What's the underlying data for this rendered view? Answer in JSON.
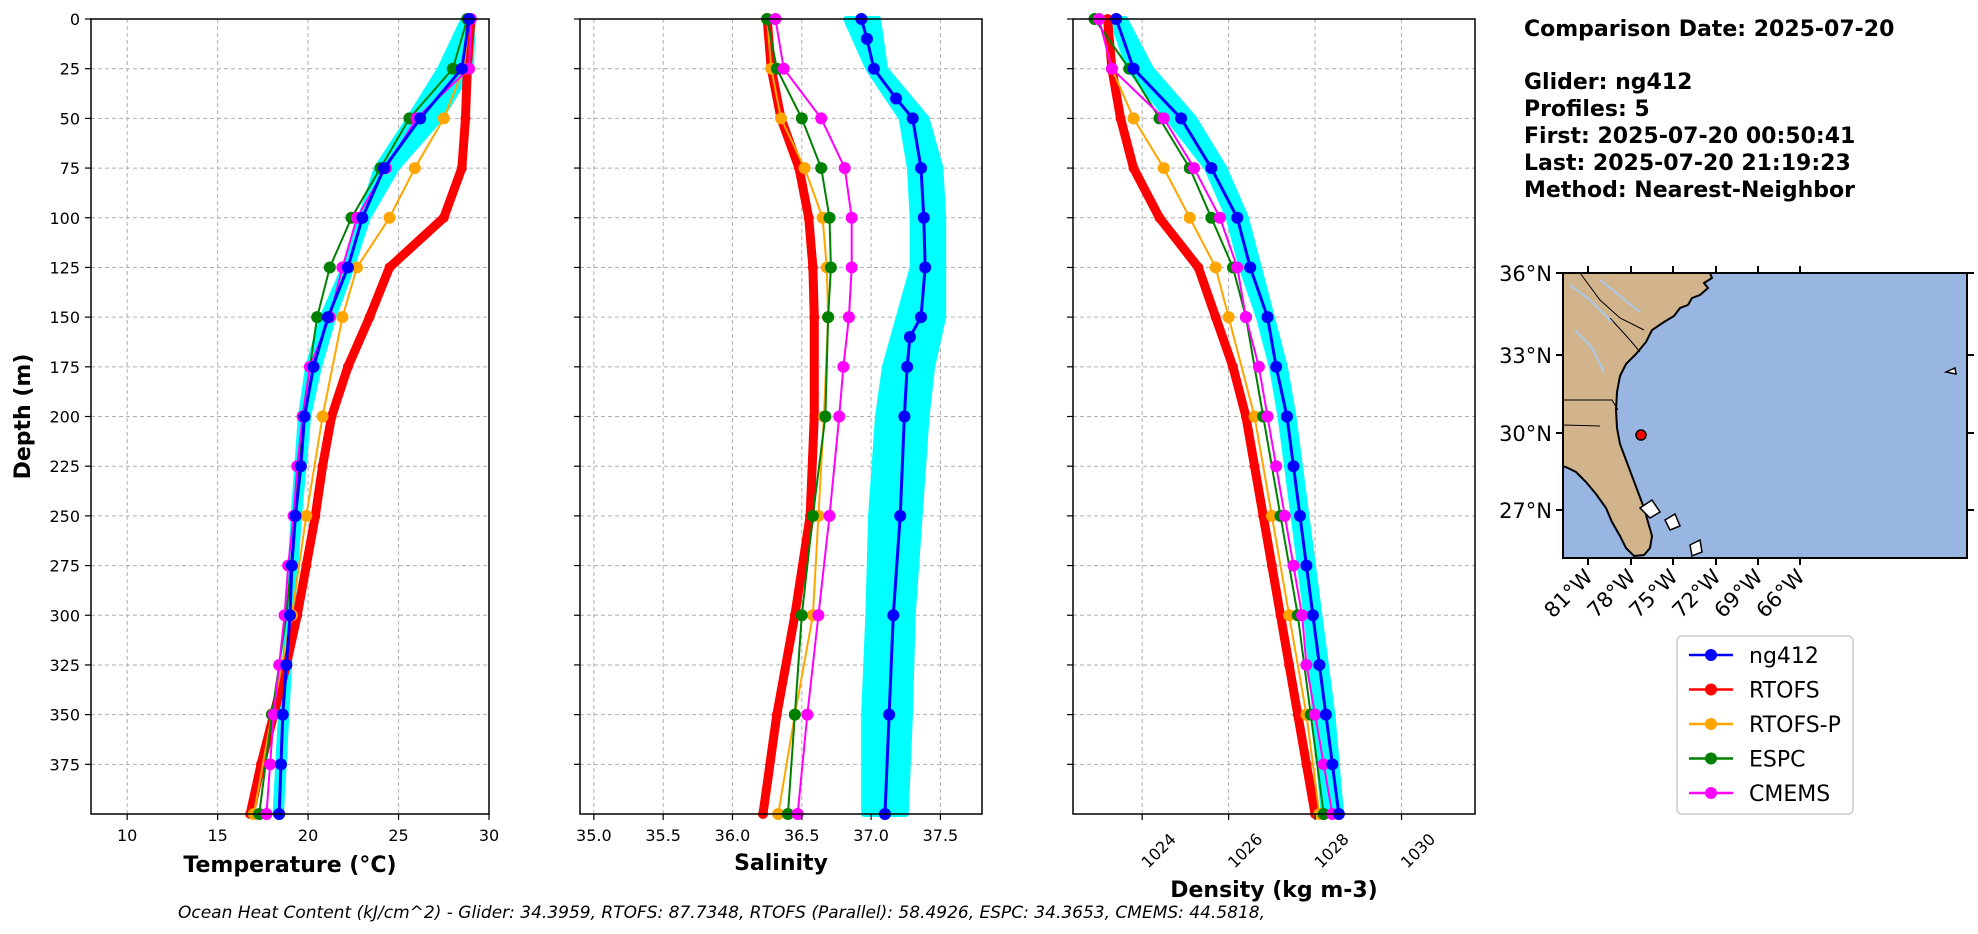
{
  "info": {
    "date_line": "Comparison Date: 2025-07-20",
    "glider_line": "Glider: ng412",
    "profiles_line": "Profiles: 5",
    "first_line": "First: 2025-07-20 00:50:41",
    "last_line": "Last: 2025-07-20 21:19:23",
    "method_line": "Method: Nearest-Neighbor"
  },
  "footer": "Ocean Heat Content (kJ/cm^2) - Glider: 34.3959,  RTOFS: 87.7348,  RTOFS (Parallel): 58.4926,  ESPC: 34.3653,  CMEMS: 44.5818,",
  "colors": {
    "ng412": "#0000ff",
    "ng412_spread": "#00ffff",
    "RTOFS": "#ff0000",
    "RTOFS-P": "#ffa500",
    "ESPC": "#008000",
    "CMEMS": "#ff00ff",
    "land": "#d2b48c",
    "ocean": "#98b6e1"
  },
  "map": {
    "lat_labels": [
      "36°N",
      "33°N",
      "30°N",
      "27°N"
    ],
    "lon_labels": [
      "81°W",
      "78°W",
      "75°W",
      "72°W",
      "69°W",
      "66°W"
    ],
    "glider_marker": {
      "lon": -77.3,
      "lat": 29.9
    }
  },
  "legend": [
    "ng412",
    "RTOFS",
    "RTOFS-P",
    "ESPC",
    "CMEMS"
  ],
  "chart_data": [
    {
      "type": "line",
      "xlabel": "Temperature (°C)",
      "ylabel": "Depth (m)",
      "xlim": [
        8,
        30
      ],
      "ylim": [
        400,
        0
      ],
      "xticks": [
        10,
        15,
        20,
        25,
        30
      ],
      "yticks": [
        0,
        25,
        50,
        75,
        100,
        125,
        150,
        175,
        200,
        225,
        250,
        275,
        300,
        325,
        350,
        375
      ],
      "grid": true,
      "glider_spread": {
        "depth": [
          0,
          25,
          50,
          75,
          100,
          125,
          150,
          175,
          200,
          250,
          300,
          350,
          400
        ],
        "min": [
          28.6,
          27.3,
          25.6,
          23.8,
          22.9,
          22.0,
          20.8,
          20.0,
          19.6,
          19.2,
          18.9,
          18.5,
          18.2
        ],
        "max": [
          29.1,
          29.0,
          27.3,
          24.9,
          23.3,
          22.4,
          21.4,
          20.6,
          20.0,
          19.5,
          19.1,
          18.8,
          18.5
        ]
      },
      "series": [
        {
          "name": "ng412",
          "depth": [
            0,
            25,
            50,
            75,
            100,
            125,
            150,
            175,
            200,
            225,
            250,
            275,
            300,
            325,
            350,
            375,
            400
          ],
          "values": [
            28.9,
            28.5,
            26.2,
            24.2,
            23.0,
            22.2,
            21.1,
            20.3,
            19.8,
            19.6,
            19.3,
            19.1,
            19.0,
            18.8,
            18.6,
            18.5,
            18.4
          ]
        },
        {
          "name": "RTOFS",
          "depth": [
            0,
            25,
            50,
            75,
            100,
            125,
            150,
            175,
            200,
            225,
            250,
            275,
            300,
            325,
            350,
            375,
            400
          ],
          "values": [
            29.0,
            28.8,
            28.7,
            28.5,
            27.5,
            24.5,
            23.4,
            22.2,
            21.3,
            20.8,
            20.4,
            19.9,
            19.4,
            18.8,
            18.1,
            17.4,
            16.8
          ]
        },
        {
          "name": "RTOFS-P",
          "depth": [
            0,
            25,
            50,
            75,
            100,
            125,
            150,
            200,
            250,
            300,
            350,
            400
          ],
          "values": [
            28.9,
            28.6,
            27.5,
            25.9,
            24.5,
            22.7,
            21.9,
            20.8,
            19.9,
            19.1,
            18.0,
            17.0
          ]
        },
        {
          "name": "ESPC",
          "depth": [
            0,
            25,
            50,
            75,
            100,
            125,
            150,
            200,
            250,
            300,
            350,
            400
          ],
          "values": [
            28.8,
            28.0,
            25.6,
            24.0,
            22.4,
            21.2,
            20.5,
            19.7,
            19.3,
            18.8,
            18.0,
            17.3
          ]
        },
        {
          "name": "CMEMS",
          "depth": [
            0,
            25,
            50,
            75,
            100,
            125,
            150,
            175,
            200,
            225,
            250,
            275,
            300,
            325,
            350,
            375,
            400
          ],
          "values": [
            29.0,
            28.9,
            26.0,
            24.3,
            22.7,
            21.9,
            21.2,
            20.1,
            19.7,
            19.4,
            19.2,
            18.9,
            18.7,
            18.4,
            18.1,
            17.9,
            17.7
          ]
        }
      ]
    },
    {
      "type": "line",
      "xlabel": "Salinity",
      "xlim": [
        34.9,
        37.8
      ],
      "ylim": [
        400,
        0
      ],
      "xticks": [
        35.0,
        35.5,
        36.0,
        36.5,
        37.0,
        37.5
      ],
      "grid": true,
      "glider_spread": {
        "depth": [
          0,
          25,
          50,
          75,
          100,
          125,
          150,
          175,
          200,
          250,
          300,
          350,
          400
        ],
        "min": [
          36.82,
          36.98,
          37.22,
          37.28,
          37.3,
          37.3,
          37.2,
          37.1,
          37.05,
          37.0,
          36.98,
          36.95,
          36.95
        ],
        "max": [
          37.05,
          37.1,
          37.4,
          37.5,
          37.52,
          37.52,
          37.52,
          37.44,
          37.4,
          37.35,
          37.3,
          37.28,
          37.25
        ]
      },
      "series": [
        {
          "name": "ng412",
          "depth": [
            0,
            10,
            25,
            40,
            50,
            75,
            100,
            125,
            150,
            160,
            175,
            200,
            250,
            300,
            350,
            400
          ],
          "values": [
            36.93,
            36.97,
            37.02,
            37.18,
            37.3,
            37.36,
            37.38,
            37.39,
            37.36,
            37.28,
            37.26,
            37.24,
            37.21,
            37.16,
            37.13,
            37.1
          ]
        },
        {
          "name": "RTOFS",
          "depth": [
            0,
            25,
            50,
            75,
            100,
            125,
            150,
            200,
            250,
            300,
            350,
            400
          ],
          "values": [
            36.25,
            36.28,
            36.35,
            36.48,
            36.55,
            36.58,
            36.59,
            36.59,
            36.56,
            36.45,
            36.32,
            36.22
          ]
        },
        {
          "name": "RTOFS-P",
          "depth": [
            0,
            25,
            50,
            75,
            100,
            125,
            150,
            200,
            250,
            300,
            350,
            400
          ],
          "values": [
            36.25,
            36.28,
            36.35,
            36.52,
            36.65,
            36.68,
            36.69,
            36.66,
            36.62,
            36.58,
            36.45,
            36.33
          ]
        },
        {
          "name": "ESPC",
          "depth": [
            0,
            25,
            50,
            75,
            100,
            125,
            150,
            200,
            250,
            300,
            350,
            400
          ],
          "values": [
            36.25,
            36.32,
            36.5,
            36.64,
            36.7,
            36.71,
            36.69,
            36.67,
            36.58,
            36.5,
            36.45,
            36.4
          ]
        },
        {
          "name": "CMEMS",
          "depth": [
            0,
            25,
            50,
            75,
            100,
            125,
            150,
            175,
            200,
            250,
            300,
            350,
            400
          ],
          "values": [
            36.31,
            36.37,
            36.64,
            36.81,
            36.86,
            36.86,
            36.84,
            36.8,
            36.77,
            36.7,
            36.62,
            36.54,
            36.47
          ]
        }
      ]
    },
    {
      "type": "line",
      "xlabel": "Density (kg m-3)",
      "xlim": [
        1022.4,
        1031.7
      ],
      "ylim": [
        400,
        0
      ],
      "xticks": [
        1024,
        1026,
        1028,
        1030
      ],
      "grid": true,
      "glider_spread": {
        "depth": [
          0,
          25,
          50,
          75,
          100,
          125,
          150,
          175,
          200,
          250,
          300,
          350,
          400
        ],
        "min": [
          1023.3,
          1023.7,
          1024.6,
          1025.5,
          1026.0,
          1026.3,
          1026.7,
          1027.0,
          1027.2,
          1027.5,
          1027.8,
          1028.0,
          1028.2
        ],
        "max": [
          1023.6,
          1024.2,
          1025.2,
          1025.9,
          1026.4,
          1026.7,
          1027.0,
          1027.3,
          1027.5,
          1027.8,
          1028.1,
          1028.4,
          1028.6
        ]
      },
      "series": [
        {
          "name": "ng412",
          "depth": [
            0,
            25,
            50,
            75,
            100,
            125,
            150,
            175,
            200,
            225,
            250,
            275,
            300,
            325,
            350,
            375,
            400
          ],
          "values": [
            1023.4,
            1023.8,
            1024.9,
            1025.6,
            1026.2,
            1026.5,
            1026.9,
            1027.1,
            1027.35,
            1027.5,
            1027.65,
            1027.8,
            1027.95,
            1028.1,
            1028.25,
            1028.4,
            1028.55
          ]
        },
        {
          "name": "RTOFS",
          "depth": [
            0,
            25,
            50,
            75,
            100,
            125,
            150,
            175,
            200,
            225,
            250,
            275,
            300,
            325,
            350,
            375,
            400
          ],
          "values": [
            1023.2,
            1023.3,
            1023.5,
            1023.8,
            1024.4,
            1025.3,
            1025.7,
            1026.1,
            1026.4,
            1026.6,
            1026.8,
            1027.0,
            1027.2,
            1027.4,
            1027.6,
            1027.8,
            1028.0
          ]
        },
        {
          "name": "RTOFS-P",
          "depth": [
            0,
            25,
            50,
            75,
            100,
            125,
            150,
            200,
            250,
            300,
            350,
            400
          ],
          "values": [
            1023.0,
            1023.3,
            1023.8,
            1024.5,
            1025.1,
            1025.7,
            1026.0,
            1026.6,
            1027.0,
            1027.4,
            1027.8,
            1028.1
          ]
        },
        {
          "name": "ESPC",
          "depth": [
            0,
            25,
            50,
            75,
            100,
            125,
            150,
            200,
            250,
            300,
            350,
            400
          ],
          "values": [
            1022.9,
            1023.7,
            1024.4,
            1025.1,
            1025.6,
            1026.1,
            1026.4,
            1026.8,
            1027.2,
            1027.6,
            1027.9,
            1028.2
          ]
        },
        {
          "name": "CMEMS",
          "depth": [
            0,
            25,
            50,
            75,
            100,
            125,
            150,
            175,
            200,
            225,
            250,
            275,
            300,
            325,
            350,
            375,
            400
          ],
          "values": [
            1023.0,
            1023.3,
            1024.5,
            1025.2,
            1025.8,
            1026.2,
            1026.4,
            1026.7,
            1026.9,
            1027.1,
            1027.3,
            1027.5,
            1027.7,
            1027.8,
            1028.0,
            1028.2,
            1028.4
          ]
        }
      ]
    }
  ]
}
